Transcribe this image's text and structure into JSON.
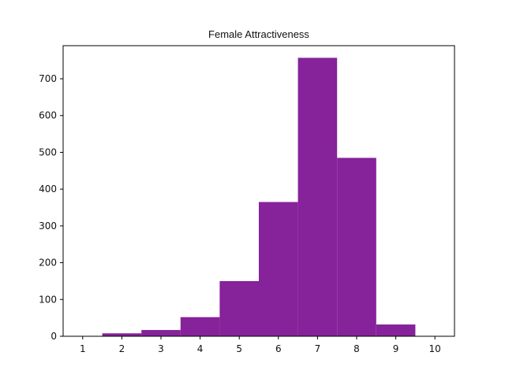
{
  "chart_data": {
    "type": "bar",
    "title": "Female Attractiveness",
    "xlabel": "",
    "ylabel": "",
    "bar_color": "#86229A",
    "bin_width": 1,
    "bins": [
      {
        "center": 2,
        "value": 8
      },
      {
        "center": 3,
        "value": 17
      },
      {
        "center": 4,
        "value": 52
      },
      {
        "center": 5,
        "value": 150
      },
      {
        "center": 6,
        "value": 365
      },
      {
        "center": 7,
        "value": 757
      },
      {
        "center": 8,
        "value": 485
      },
      {
        "center": 9,
        "value": 32
      }
    ],
    "xlim": [
      0.5,
      10.5
    ],
    "ylim": [
      0,
      790
    ],
    "xticks": [
      1,
      2,
      3,
      4,
      5,
      6,
      7,
      8,
      9,
      10
    ],
    "yticks": [
      0,
      100,
      200,
      300,
      400,
      500,
      600,
      700
    ],
    "grid": false,
    "legend": "none"
  }
}
